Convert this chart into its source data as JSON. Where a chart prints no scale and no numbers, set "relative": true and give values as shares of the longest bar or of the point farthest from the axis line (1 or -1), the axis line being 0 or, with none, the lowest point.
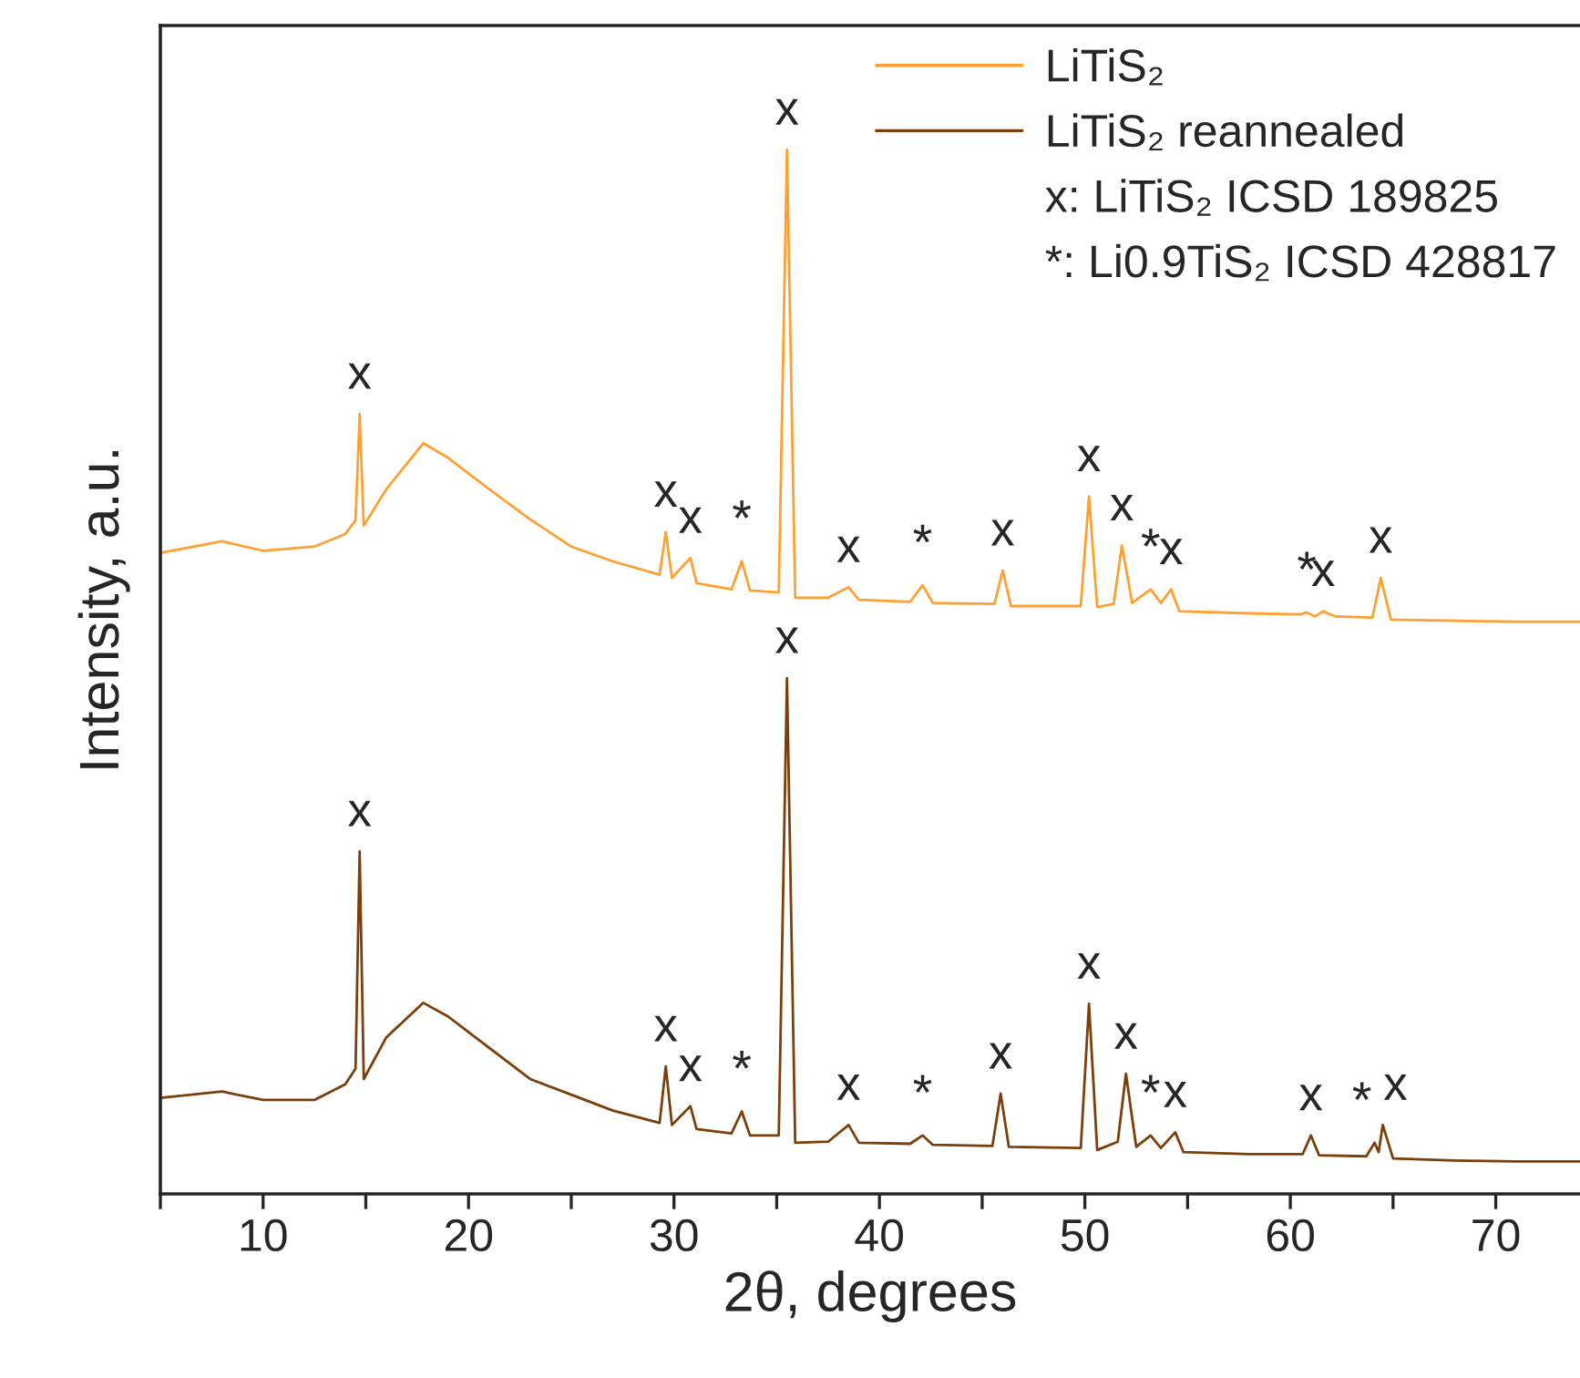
{
  "chart_data": {
    "type": "line",
    "relative": true,
    "xlabel": "2θ, degrees",
    "ylabel": "Intensity, a.u.",
    "xlim": [
      5,
      74.1
    ],
    "xticks": [
      {
        "value": 5,
        "label": null
      },
      10,
      {
        "value": 15,
        "label": null
      },
      20,
      {
        "value": 25,
        "label": null
      },
      30,
      {
        "value": 35,
        "label": null
      },
      40,
      {
        "value": 45,
        "label": null
      },
      50,
      {
        "value": 55,
        "label": null
      },
      60,
      {
        "value": 65,
        "label": null
      },
      70
    ],
    "legend": "top right",
    "grid": false,
    "series": [
      {
        "name": "LiTiS₂",
        "color": "#ffa033",
        "x": [
          5,
          8,
          10,
          12.5,
          14,
          14.5,
          14.7,
          14.9,
          16,
          17.8,
          19,
          21,
          23,
          25,
          27,
          29.3,
          29.6,
          29.9,
          30.8,
          31.1,
          32.8,
          33.3,
          33.7,
          35.1,
          35.5,
          35.9,
          37.5,
          38.5,
          39,
          41.5,
          42.1,
          42.6,
          45.6,
          46.0,
          46.4,
          49.8,
          50.2,
          50.6,
          51.4,
          51.8,
          52.3,
          53.2,
          53.7,
          54.2,
          54.6,
          58,
          60.5,
          60.8,
          61.2,
          61.6,
          62.2,
          64.0,
          64.4,
          64.9,
          68,
          71,
          74.1
        ],
        "values": [
          0.614,
          0.625,
          0.616,
          0.62,
          0.632,
          0.645,
          0.747,
          0.64,
          0.675,
          0.719,
          0.705,
          0.675,
          0.646,
          0.62,
          0.606,
          0.593,
          0.634,
          0.59,
          0.609,
          0.585,
          0.579,
          0.606,
          0.578,
          0.576,
          1.0,
          0.571,
          0.571,
          0.581,
          0.569,
          0.567,
          0.583,
          0.566,
          0.565,
          0.597,
          0.563,
          0.563,
          0.668,
          0.562,
          0.565,
          0.621,
          0.566,
          0.579,
          0.566,
          0.579,
          0.558,
          0.556,
          0.555,
          0.557,
          0.553,
          0.558,
          0.553,
          0.552,
          0.59,
          0.55,
          0.549,
          0.548,
          0.548
        ]
      },
      {
        "name": "LiTiS₂ reannealed",
        "color": "#7a3f0a",
        "x": [
          5,
          8,
          10,
          12.5,
          14,
          14.5,
          14.7,
          14.9,
          16,
          17.8,
          19,
          21,
          23,
          25,
          27,
          29.3,
          29.6,
          29.9,
          30.8,
          31.1,
          32.8,
          33.3,
          33.7,
          35.1,
          35.5,
          35.9,
          37.5,
          38.5,
          39,
          41.5,
          42.1,
          42.6,
          45.5,
          45.9,
          46.3,
          49.8,
          50.2,
          50.6,
          51.6,
          52.0,
          52.5,
          53.2,
          53.7,
          54.4,
          54.8,
          58,
          60.6,
          61.0,
          61.4,
          63.7,
          64.1,
          64.3,
          64.5,
          65,
          68,
          71,
          74.1
        ],
        "values": [
          0.092,
          0.098,
          0.09,
          0.09,
          0.105,
          0.12,
          0.328,
          0.11,
          0.15,
          0.183,
          0.17,
          0.14,
          0.11,
          0.095,
          0.08,
          0.068,
          0.122,
          0.066,
          0.084,
          0.062,
          0.058,
          0.079,
          0.056,
          0.056,
          0.494,
          0.049,
          0.05,
          0.066,
          0.049,
          0.048,
          0.056,
          0.047,
          0.046,
          0.096,
          0.045,
          0.044,
          0.182,
          0.042,
          0.05,
          0.115,
          0.045,
          0.056,
          0.044,
          0.059,
          0.04,
          0.038,
          0.038,
          0.056,
          0.037,
          0.036,
          0.049,
          0.04,
          0.066,
          0.034,
          0.032,
          0.031,
          0.031
        ]
      }
    ],
    "annotations": [
      "x: LiTiS₂ ICSD 189825",
      "*: Li0.9TiS₂ ICSD 428817",
      {
        "text": "x",
        "x": 14.7,
        "y": 0.747
      },
      {
        "text": "x",
        "x": 29.6,
        "y": 0.634
      },
      {
        "text": "x",
        "x": 30.8,
        "y": 0.609
      },
      {
        "text": "*",
        "x": 33.3,
        "y": 0.606
      },
      {
        "text": "x",
        "x": 35.5,
        "y": 1.0
      },
      {
        "text": "x",
        "x": 38.5,
        "y": 0.581
      },
      {
        "text": "*",
        "x": 42.1,
        "y": 0.583
      },
      {
        "text": "x",
        "x": 46.0,
        "y": 0.597
      },
      {
        "text": "x",
        "x": 50.2,
        "y": 0.668
      },
      {
        "text": "x",
        "x": 51.8,
        "y": 0.621
      },
      {
        "text": "*",
        "x": 53.2,
        "y": 0.579
      },
      {
        "text": "x",
        "x": 54.2,
        "y": 0.579
      },
      {
        "text": "*",
        "x": 60.8,
        "y": 0.557
      },
      {
        "text": "x",
        "x": 61.6,
        "y": 0.558
      },
      {
        "text": "x",
        "x": 64.4,
        "y": 0.59
      },
      {
        "text": "x",
        "x": 14.7,
        "y": 0.328
      },
      {
        "text": "x",
        "x": 29.6,
        "y": 0.122
      },
      {
        "text": "x",
        "x": 30.8,
        "y": 0.084
      },
      {
        "text": "*",
        "x": 33.3,
        "y": 0.079
      },
      {
        "text": "x",
        "x": 35.5,
        "y": 0.494
      },
      {
        "text": "x",
        "x": 38.5,
        "y": 0.066
      },
      {
        "text": "*",
        "x": 42.1,
        "y": 0.056
      },
      {
        "text": "x",
        "x": 45.9,
        "y": 0.096
      },
      {
        "text": "x",
        "x": 50.2,
        "y": 0.182
      },
      {
        "text": "x",
        "x": 52.0,
        "y": 0.115
      },
      {
        "text": "*",
        "x": 53.2,
        "y": 0.056
      },
      {
        "text": "x",
        "x": 54.4,
        "y": 0.059
      },
      {
        "text": "x",
        "x": 61.0,
        "y": 0.056
      },
      {
        "text": "*",
        "x": 64.1,
        "y": 0.049
      },
      {
        "text": "x",
        "x": 64.5,
        "y": 0.066
      }
    ]
  }
}
